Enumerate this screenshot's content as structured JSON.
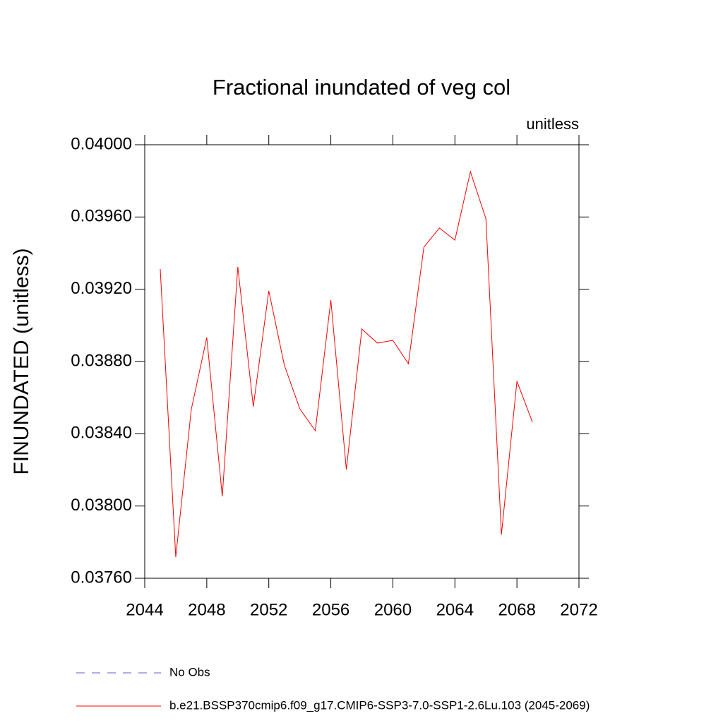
{
  "chart_data": {
    "type": "line",
    "title": "Fractional inundated of veg col",
    "units_label": "unitless",
    "y_label": "FINUNDATED  (unitless)",
    "x": [
      2045,
      2046,
      2047,
      2048,
      2049,
      2050,
      2051,
      2052,
      2053,
      2054,
      2055,
      2056,
      2057,
      2058,
      2059,
      2060,
      2061,
      2062,
      2063,
      2064,
      2065,
      2066,
      2067,
      2068,
      2069
    ],
    "series": [
      {
        "name": "No Obs",
        "color": "#6a5acd",
        "dashed": true,
        "values": [
          null,
          null,
          null,
          null,
          null,
          null,
          null,
          null,
          null,
          null,
          null,
          null,
          null,
          null,
          null,
          null,
          null,
          null,
          null,
          null,
          null,
          null,
          null,
          null,
          null
        ]
      },
      {
        "name": "b.e21.BSSP370cmip6.f09_g17.CMIP6-SSP3-7.0-SSP1-2.6Lu.103 (2045-2069)",
        "color": "#ff0000",
        "dashed": false,
        "values": [
          0.039312,
          0.037717,
          0.038534,
          0.038933,
          0.038053,
          0.039324,
          0.03855,
          0.039191,
          0.03878,
          0.038538,
          0.038417,
          0.03914,
          0.038202,
          0.03898,
          0.038902,
          0.038917,
          0.038788,
          0.039433,
          0.039539,
          0.039472,
          0.039851,
          0.03959,
          0.037842,
          0.038691,
          0.038464
        ]
      }
    ],
    "xlim": [
      2044,
      2072
    ],
    "xticks": [
      2044,
      2048,
      2052,
      2056,
      2060,
      2064,
      2068,
      2072
    ],
    "ylim": [
      0.0376,
      0.04
    ],
    "yticks": [
      {
        "value": 0.0376,
        "label": "0.03760"
      },
      {
        "value": 0.038,
        "label": "0.03800"
      },
      {
        "value": 0.0384,
        "label": "0.03840"
      },
      {
        "value": 0.0388,
        "label": "0.03880"
      },
      {
        "value": 0.0392,
        "label": "0.03920"
      },
      {
        "value": 0.0396,
        "label": "0.03960"
      },
      {
        "value": 0.04,
        "label": "0.04000"
      }
    ],
    "grid": false
  }
}
